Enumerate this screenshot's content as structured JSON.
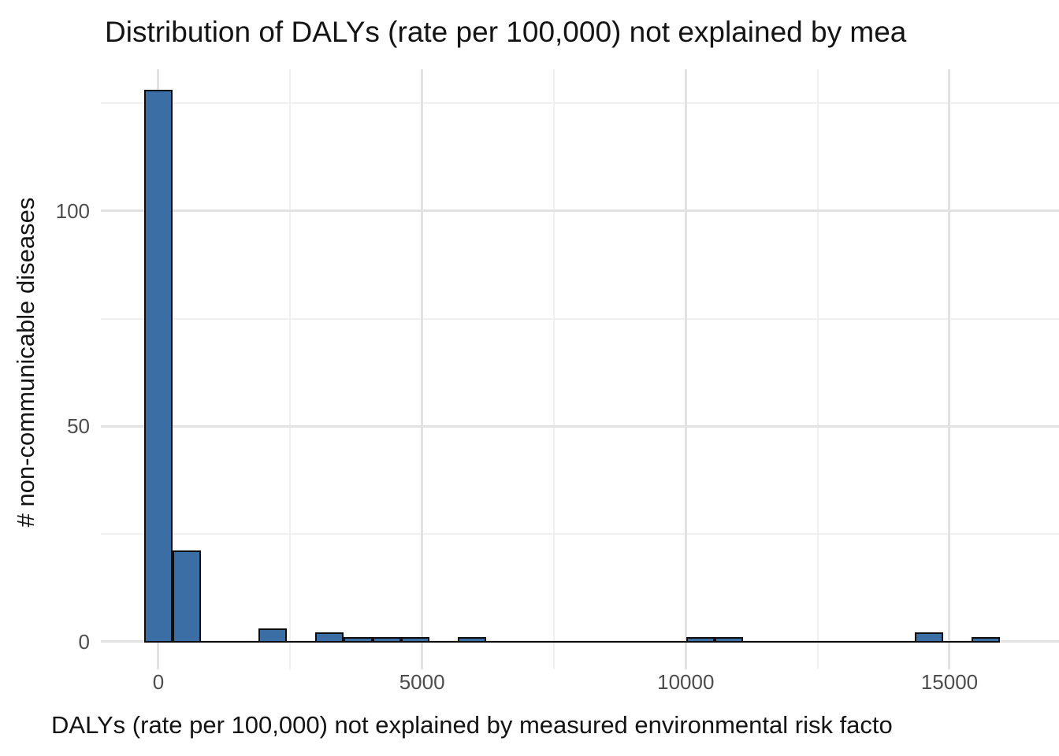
{
  "chart_data": {
    "type": "bar",
    "subtype": "histogram",
    "title": "Distribution of DALYs (rate per 100,000) not explained by mea",
    "x_axis": {
      "label": "DALYs (rate per 100,000) not explained by measured environmental risk facto",
      "ticks": [
        {
          "value": 0,
          "label": "0"
        },
        {
          "value": 5000,
          "label": "5000"
        },
        {
          "value": 10000,
          "label": "10000"
        },
        {
          "value": 15000,
          "label": "15000"
        }
      ],
      "minor_ticks": [
        2500,
        7500,
        12500
      ]
    },
    "y_axis": {
      "label": "# non-communicable diseases",
      "ticks": [
        {
          "value": 0,
          "label": "0"
        },
        {
          "value": 50,
          "label": "50"
        },
        {
          "value": 100,
          "label": "100"
        }
      ],
      "minor_ticks": [
        25,
        75,
        125
      ]
    },
    "bin_width": 541,
    "bin_centers": [
      0,
      541,
      1082,
      1623,
      2164,
      2705,
      3246,
      3787,
      4328,
      4869,
      5410,
      5951,
      6492,
      7033,
      7574,
      8115,
      8656,
      9197,
      9738,
      10279,
      10820,
      11361,
      11902,
      12443,
      12984,
      13525,
      14066,
      14607,
      15148,
      15689
    ],
    "counts": [
      128,
      21,
      0,
      0,
      3,
      0,
      2,
      1,
      1,
      1,
      0,
      1,
      0,
      0,
      0,
      0,
      0,
      0,
      0,
      1,
      1,
      0,
      0,
      0,
      0,
      0,
      0,
      2,
      0,
      1
    ],
    "xlim": [
      -1090,
      17077
    ],
    "ylim": [
      -6.4,
      132.9
    ],
    "grid": true,
    "legend": "none",
    "colors": {
      "bar_fill": "#3A6EA5",
      "bar_stroke": "#0d0d0d",
      "grid_major": "#e2e2e2",
      "grid_minor": "#f0f0f0",
      "tick_text": "#4d4d4d",
      "label_text": "#141414",
      "background": "#ffffff"
    }
  }
}
